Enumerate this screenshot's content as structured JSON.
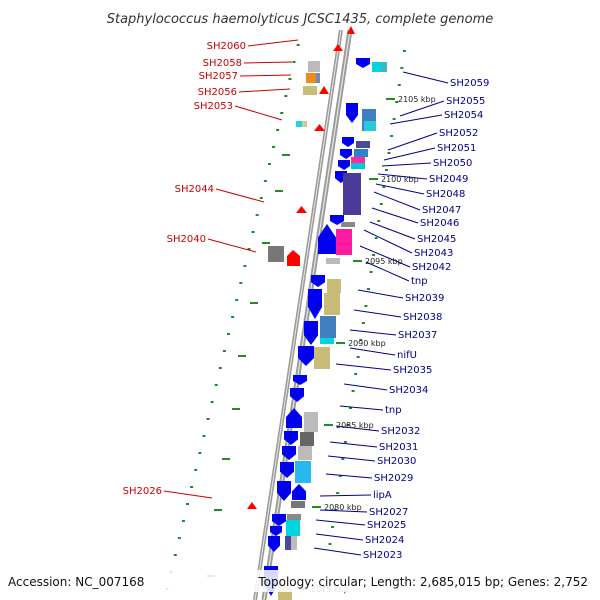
{
  "title": "Staphylococcus haemolyticus JCSC1435, complete genome",
  "accession": "Accession: NC_007168",
  "summary": "Topology: circular; Length: 2,685,015 bp; Genes: 2,752",
  "colors": {
    "forward_label": "#cc0000",
    "reverse_label": "#00008b",
    "forward_gene": "#ff0000",
    "reverse_gene": "#0000ee",
    "backbone": "#999999",
    "tick": "#228b22"
  },
  "kbp_markers": [
    {
      "label": "2105 kbp"
    },
    {
      "label": "2100 kbp"
    },
    {
      "label": "2095 kbp"
    },
    {
      "label": "2090 kbp"
    },
    {
      "label": "2085 kbp"
    },
    {
      "label": "2080 kbp"
    },
    {
      "label": "2075 kbp"
    }
  ],
  "left_labels": [
    {
      "name": "SH2060"
    },
    {
      "name": "SH2058"
    },
    {
      "name": "SH2057"
    },
    {
      "name": "SH2056"
    },
    {
      "name": "SH2053"
    },
    {
      "name": "SH2044"
    },
    {
      "name": "SH2040"
    },
    {
      "name": "SH2026"
    }
  ],
  "right_labels": [
    {
      "name": "SH2059"
    },
    {
      "name": "SH2055"
    },
    {
      "name": "SH2054"
    },
    {
      "name": "SH2052"
    },
    {
      "name": "SH2051"
    },
    {
      "name": "SH2050"
    },
    {
      "name": "SH2049"
    },
    {
      "name": "SH2048"
    },
    {
      "name": "SH2047"
    },
    {
      "name": "SH2046"
    },
    {
      "name": "SH2045"
    },
    {
      "name": "SH2043"
    },
    {
      "name": "SH2042"
    },
    {
      "name": "tnp"
    },
    {
      "name": "SH2039"
    },
    {
      "name": "SH2038"
    },
    {
      "name": "SH2037"
    },
    {
      "name": "nifU"
    },
    {
      "name": "SH2035"
    },
    {
      "name": "SH2034"
    },
    {
      "name": "tnp"
    },
    {
      "name": "SH2032"
    },
    {
      "name": "SH2031"
    },
    {
      "name": "SH2030"
    },
    {
      "name": "SH2029"
    },
    {
      "name": "lipA"
    },
    {
      "name": "SH2027"
    },
    {
      "name": "SH2025"
    },
    {
      "name": "SH2024"
    },
    {
      "name": "SH2023"
    }
  ]
}
